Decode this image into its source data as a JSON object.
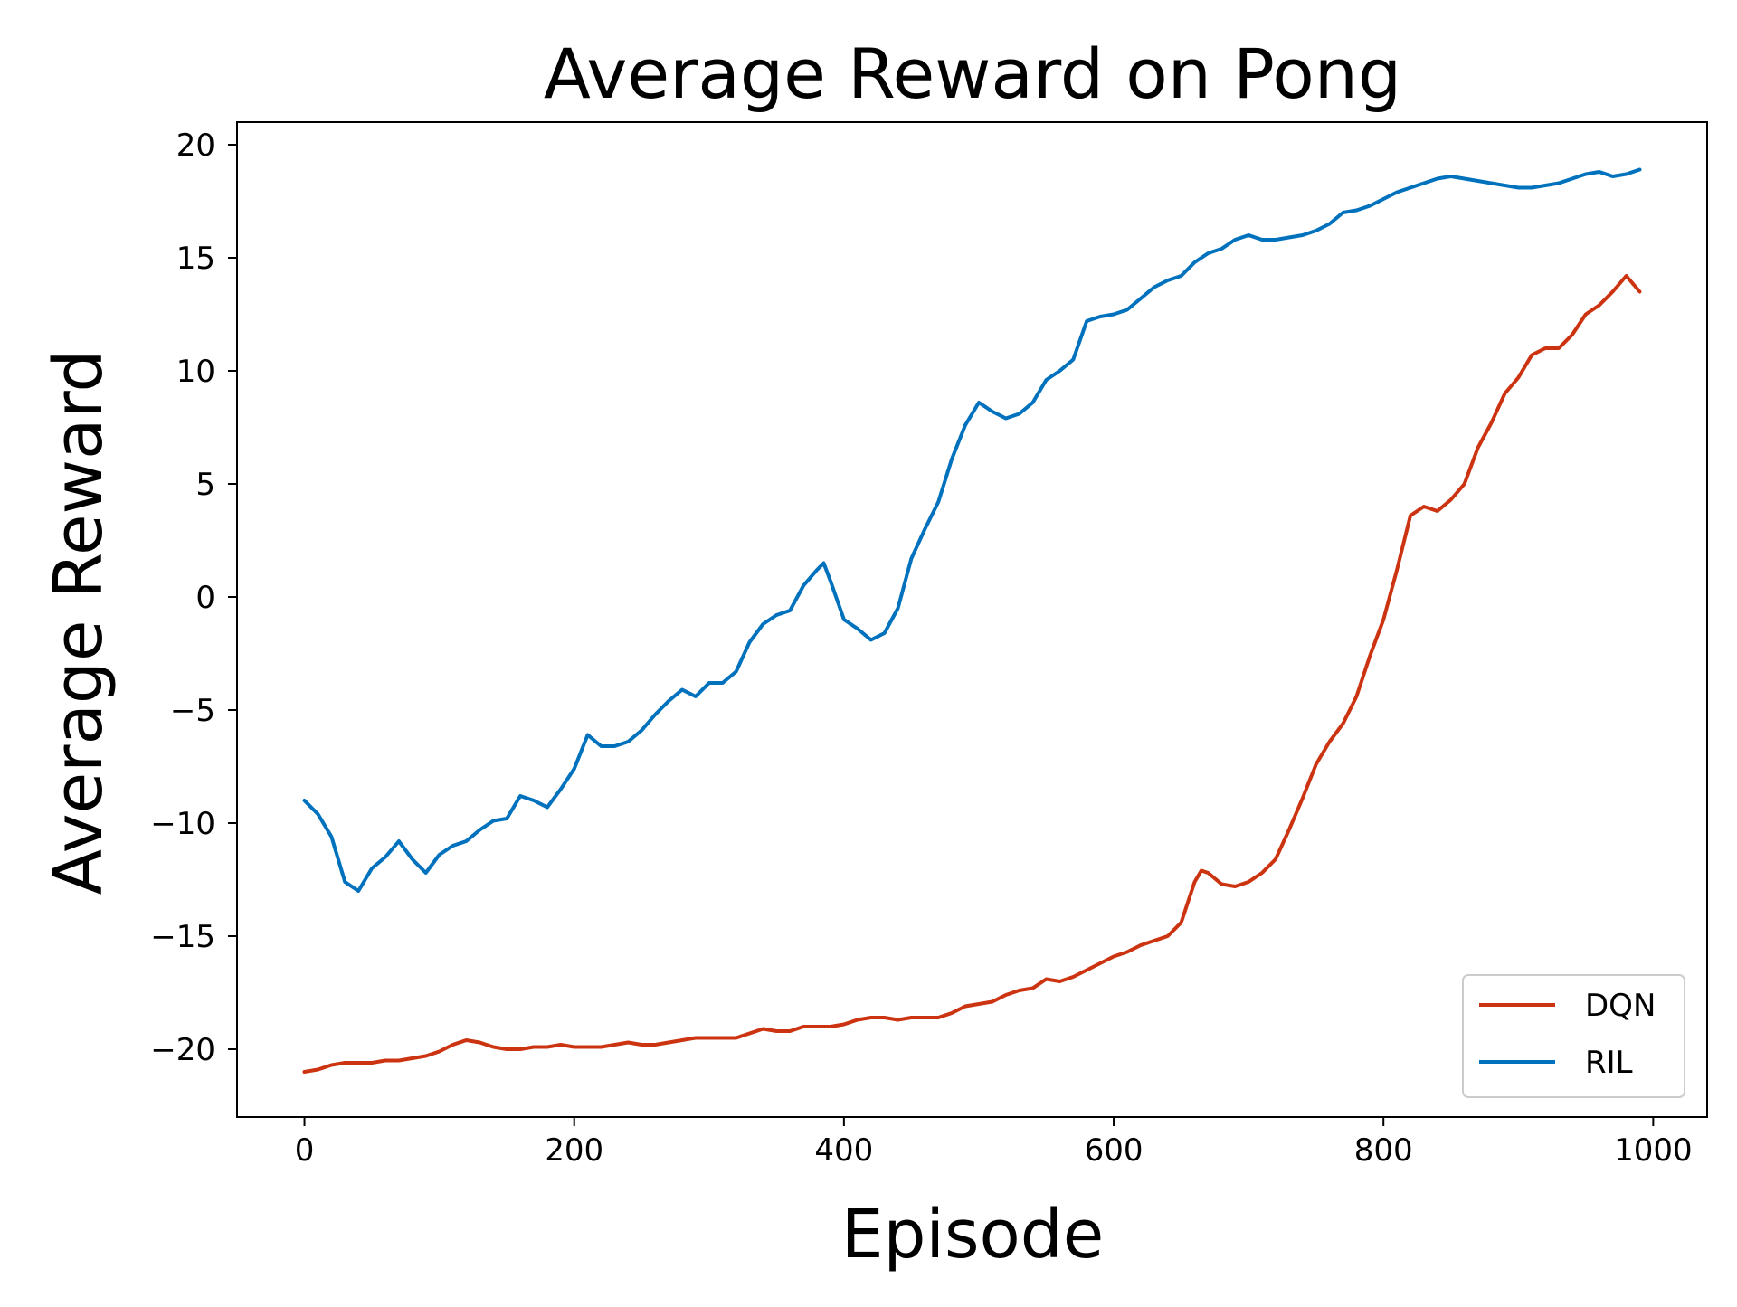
{
  "chart_data": {
    "type": "line",
    "title": "Average Reward on Pong",
    "xlabel": "Episode",
    "ylabel": "Average Reward",
    "xlim": [
      -50,
      1040
    ],
    "ylim": [
      -23,
      21
    ],
    "xticks": [
      0,
      200,
      400,
      600,
      800,
      1000
    ],
    "xtick_labels": [
      "0",
      "200",
      "400",
      "600",
      "800",
      "1000"
    ],
    "yticks": [
      -20,
      -15,
      -10,
      -5,
      0,
      5,
      10,
      15,
      20
    ],
    "ytick_labels": [
      "−20",
      "−15",
      "−10",
      "−5",
      "0",
      "5",
      "10",
      "15",
      "20"
    ],
    "grid": false,
    "legend_position": "lower-right",
    "series": [
      {
        "name": "DQN",
        "color": "#cc3311",
        "x": [
          0,
          10,
          20,
          30,
          40,
          50,
          60,
          70,
          80,
          90,
          100,
          110,
          120,
          130,
          140,
          150,
          160,
          170,
          180,
          190,
          200,
          210,
          220,
          230,
          240,
          250,
          260,
          270,
          280,
          290,
          300,
          310,
          320,
          330,
          340,
          350,
          360,
          370,
          380,
          390,
          400,
          410,
          420,
          430,
          440,
          450,
          460,
          470,
          480,
          490,
          500,
          510,
          520,
          530,
          540,
          550,
          560,
          570,
          580,
          590,
          600,
          610,
          620,
          630,
          640,
          650,
          660,
          665,
          670,
          680,
          690,
          700,
          710,
          720,
          730,
          740,
          750,
          760,
          770,
          780,
          790,
          800,
          810,
          820,
          830,
          840,
          850,
          860,
          870,
          880,
          890,
          900,
          910,
          920,
          930,
          940,
          950,
          960,
          970,
          980,
          990
        ],
        "y": [
          -21.0,
          -20.9,
          -20.7,
          -20.6,
          -20.6,
          -20.6,
          -20.5,
          -20.5,
          -20.4,
          -20.3,
          -20.1,
          -19.8,
          -19.6,
          -19.7,
          -19.9,
          -20.0,
          -20.0,
          -19.9,
          -19.9,
          -19.8,
          -19.9,
          -19.9,
          -19.9,
          -19.8,
          -19.7,
          -19.8,
          -19.8,
          -19.7,
          -19.6,
          -19.5,
          -19.5,
          -19.5,
          -19.5,
          -19.3,
          -19.1,
          -19.2,
          -19.2,
          -19.0,
          -19.0,
          -19.0,
          -18.9,
          -18.7,
          -18.6,
          -18.6,
          -18.7,
          -18.6,
          -18.6,
          -18.6,
          -18.4,
          -18.1,
          -18.0,
          -17.9,
          -17.6,
          -17.4,
          -17.3,
          -16.9,
          -17.0,
          -16.8,
          -16.5,
          -16.2,
          -15.9,
          -15.7,
          -15.4,
          -15.2,
          -15.0,
          -14.4,
          -12.6,
          -12.1,
          -12.2,
          -12.7,
          -12.8,
          -12.6,
          -12.2,
          -11.6,
          -10.3,
          -8.9,
          -7.4,
          -6.4,
          -5.6,
          -4.4,
          -2.6,
          -1.0,
          1.2,
          3.6,
          4.0,
          3.8,
          4.3,
          5.0,
          6.6,
          7.7,
          9.0,
          9.7,
          10.7,
          11.0,
          11.0,
          11.6,
          12.5,
          12.9,
          13.5,
          14.2,
          13.5
        ]
      },
      {
        "name": "RIL",
        "color": "#0072bd",
        "x": [
          0,
          10,
          20,
          30,
          40,
          50,
          60,
          70,
          80,
          90,
          100,
          110,
          120,
          130,
          140,
          150,
          160,
          170,
          180,
          190,
          200,
          210,
          220,
          230,
          240,
          250,
          260,
          270,
          280,
          290,
          300,
          310,
          320,
          330,
          340,
          350,
          360,
          370,
          380,
          385,
          390,
          400,
          410,
          420,
          430,
          440,
          450,
          460,
          470,
          480,
          490,
          500,
          510,
          520,
          530,
          540,
          550,
          560,
          570,
          580,
          590,
          600,
          610,
          620,
          630,
          640,
          650,
          660,
          670,
          680,
          690,
          700,
          710,
          720,
          730,
          740,
          750,
          760,
          770,
          780,
          790,
          800,
          810,
          820,
          830,
          840,
          850,
          860,
          870,
          880,
          890,
          900,
          910,
          920,
          930,
          940,
          950,
          960,
          970,
          980,
          990
        ],
        "y": [
          -9.0,
          -9.6,
          -10.6,
          -12.6,
          -13.0,
          -12.0,
          -11.5,
          -10.8,
          -11.6,
          -12.2,
          -11.4,
          -11.0,
          -10.8,
          -10.3,
          -9.9,
          -9.8,
          -8.8,
          -9.0,
          -9.3,
          -8.5,
          -7.6,
          -6.1,
          -6.6,
          -6.6,
          -6.4,
          -5.9,
          -5.2,
          -4.6,
          -4.1,
          -4.4,
          -3.8,
          -3.8,
          -3.3,
          -2.0,
          -1.2,
          -0.8,
          -0.6,
          0.5,
          1.2,
          1.5,
          0.7,
          -1.0,
          -1.4,
          -1.9,
          -1.6,
          -0.5,
          1.7,
          3.0,
          4.2,
          6.1,
          7.6,
          8.6,
          8.2,
          7.9,
          8.1,
          8.6,
          9.6,
          10.0,
          10.5,
          12.2,
          12.4,
          12.5,
          12.7,
          13.2,
          13.7,
          14.0,
          14.2,
          14.8,
          15.2,
          15.4,
          15.8,
          16.0,
          15.8,
          15.8,
          15.9,
          16.0,
          16.2,
          16.5,
          17.0,
          17.1,
          17.3,
          17.6,
          17.9,
          18.1,
          18.3,
          18.5,
          18.6,
          18.5,
          18.4,
          18.3,
          18.2,
          18.1,
          18.1,
          18.2,
          18.3,
          18.5,
          18.7,
          18.8,
          18.6,
          18.7,
          18.9
        ]
      }
    ]
  }
}
